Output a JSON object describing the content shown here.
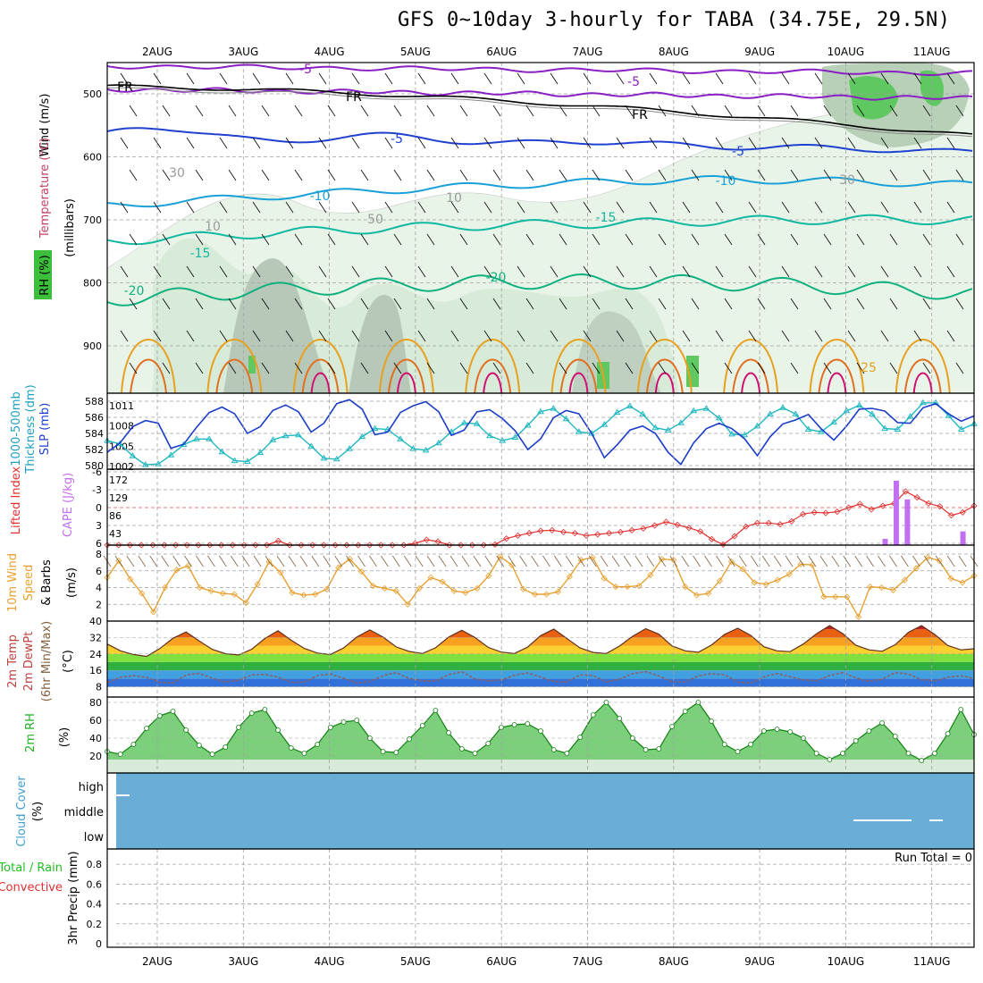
{
  "title": "GFS 0~10day 3-hourly for TABA (34.75E, 29.5N)",
  "colors": {
    "temp_purple": "#8a1fc4",
    "temp_blue": "#2040d0",
    "temp_cyan": "#1aa0d8",
    "temp_teal": "#10b8a0",
    "temp_green": "#10b080",
    "temp_orange": "#e8a020",
    "temp_magenta": "#d01070",
    "slp": "#1a3cc8",
    "thickness": "#20b8c0",
    "li": "#e03030",
    "cape": "#c070f0",
    "wind": "#e8a030",
    "rh": "#20c020",
    "cloud": "#6aaed8"
  },
  "chart_data": {
    "type": "meteogram",
    "x_dates": [
      "2AUG",
      "3AUG",
      "4AUG",
      "5AUG",
      "6AUG",
      "7AUG",
      "8AUG",
      "9AUG",
      "10AUG",
      "11AUG"
    ],
    "panels": [
      {
        "id": "upper",
        "ylabels": [
          "Wind (m/s)",
          "Temperature (°C)",
          "RH (%)",
          "(millibars)"
        ],
        "yticks": [
          500,
          600,
          700,
          800,
          900
        ],
        "contour_labels": [
          {
            "text": "FR"
          },
          {
            "text": "FR"
          },
          {
            "text": "FR"
          },
          {
            "text": "-5"
          },
          {
            "text": "-5"
          },
          {
            "text": "-5"
          },
          {
            "text": "-5"
          },
          {
            "text": "-10"
          },
          {
            "text": "-10"
          },
          {
            "text": "-15"
          },
          {
            "text": "-15"
          },
          {
            "text": "-20"
          },
          {
            "text": "-20"
          },
          {
            "text": "25"
          },
          {
            "text": "30"
          },
          {
            "text": "10"
          },
          {
            "text": "50"
          },
          {
            "text": "10"
          },
          {
            "text": "30"
          }
        ]
      },
      {
        "id": "slp_thickness",
        "ylabels": [
          "1000-500mb",
          "Thickness (dm)",
          "SLP (mb)"
        ],
        "yticks_left": [
          588,
          586,
          584,
          582,
          580
        ],
        "yticks_right": [
          1011,
          1008,
          1005,
          1002
        ],
        "slp": [
          1004.1,
          1005.5,
          1007.9,
          1008.8,
          1008.4,
          1004.7,
          1005.3,
          1007.8,
          1010,
          1010.8,
          1009.8,
          1006.9,
          1007.9,
          1010.3,
          1011.1,
          1010.1,
          1007.1,
          1008.4,
          1011.3,
          1011.9,
          1010.5,
          1006.7,
          1007.1,
          1010,
          1011,
          1011.6,
          1010.1,
          1006.6,
          1007.4,
          1010.1,
          1010.4,
          1009.1,
          1007.3,
          1004.5,
          1006.1,
          1009.2,
          1010.3,
          1009.8,
          1006.9,
          1003.3,
          1005.2,
          1007.4,
          1008,
          1006.9,
          1004.1,
          1002.3,
          1005.5,
          1007.6,
          1008.4,
          1007.6,
          1006.1,
          1003.6,
          1006.4,
          1008.3,
          1008.9,
          1009.7,
          1007.6,
          1005.9,
          1008,
          1010.5,
          1010.6,
          1010.2,
          1008.5,
          1008.4,
          1010.7,
          1011.3,
          1009.8,
          1008.7,
          1009.5
        ],
        "thickness": [
          583.1,
          582.7,
          581.2,
          580.1,
          580.2,
          581.3,
          582.6,
          583.3,
          583.3,
          581.7,
          580.6,
          580.5,
          581.6,
          583.2,
          583.7,
          583.8,
          582.4,
          580.9,
          580.8,
          582.1,
          583.6,
          584.6,
          584.5,
          583.3,
          582.1,
          581.9,
          582.8,
          584.2,
          585.3,
          585.2,
          583.7,
          583.1,
          583.5,
          585,
          586.7,
          587.1,
          585.8,
          584.2,
          584,
          585.1,
          586.6,
          587.4,
          586.4,
          584.7,
          584.4,
          585.3,
          586.8,
          587.1,
          585.9,
          583.9,
          583.8,
          584.9,
          586.4,
          587.2,
          586.4,
          584.5,
          584.2,
          585.4,
          586.8,
          587.5,
          586.4,
          584.6,
          584.5,
          586.1,
          587.8,
          587.8,
          586.2,
          584.5,
          585.2
        ]
      },
      {
        "id": "li_cape",
        "ylabels": [
          "Lifted Index",
          "CAPE (J/kg)"
        ],
        "yticks_left": [
          "-6",
          "-3",
          "0",
          "3",
          "6"
        ],
        "yticks_right": [
          "172",
          "129",
          "86",
          "43"
        ],
        "lifted_index": [
          6.8,
          7,
          7.3,
          7.4,
          6.9,
          6.6,
          7.2,
          7.4,
          7.1,
          6.3,
          6.7,
          7.1,
          7.4,
          7.2,
          6.4,
          5.6,
          6.4,
          7.4,
          7.4,
          7.2,
          7,
          6.9,
          6.7,
          7.2,
          7.3,
          7.1,
          6.8,
          6,
          5.4,
          5.7,
          6.3,
          6.8,
          6.9,
          6.8,
          6.2,
          5.2,
          4.7,
          4.3,
          3.9,
          3.8,
          4.1,
          4.3,
          4.7,
          4.5,
          4.3,
          4.1,
          3.8,
          3.5,
          3,
          2.4,
          2.9,
          3.4,
          4,
          5.3,
          6.2,
          4.8,
          3.2,
          2.6,
          2.6,
          2.8,
          2.3,
          1.1,
          0.8,
          0.9,
          0.7,
          0,
          -0.6,
          0.3,
          -0.3,
          -0.7,
          -2.7,
          -1.7,
          -0.7,
          -0.2,
          1.3,
          0.8,
          -0.3
        ],
        "cape": [
          0,
          0,
          0,
          0,
          0,
          0,
          0,
          0,
          0,
          0,
          0,
          0,
          0,
          0,
          0,
          0,
          0,
          0,
          0,
          0,
          0,
          0,
          0,
          0,
          0,
          0,
          0,
          0,
          0,
          0,
          0,
          0,
          0,
          0,
          0,
          0,
          0,
          0,
          0,
          0,
          0,
          0,
          0,
          0,
          0,
          0,
          0,
          0,
          0,
          0,
          0,
          0,
          0,
          0,
          0,
          0,
          0,
          0,
          0,
          0,
          0,
          0,
          0,
          0,
          0,
          0,
          0,
          0,
          0,
          0,
          15,
          155,
          110,
          0,
          0,
          0,
          0,
          33,
          0
        ]
      },
      {
        "id": "wind10m",
        "ylabels": [
          "10m Wind",
          "Speed",
          "& Barbs",
          "(m/s)"
        ],
        "yticks": [
          8,
          6,
          4,
          2
        ],
        "speed": [
          5.2,
          7.2,
          5,
          3.3,
          1.1,
          4,
          6.1,
          6.6,
          4,
          3.6,
          3.3,
          3.2,
          2.2,
          4.4,
          7.1,
          5.8,
          3.4,
          3.1,
          3.2,
          3.8,
          6.4,
          7.4,
          5.9,
          4.2,
          3.9,
          3.6,
          2,
          3.9,
          5.2,
          4.7,
          3.6,
          3.4,
          3.9,
          5.4,
          7.7,
          6.7,
          3.8,
          3.2,
          3.2,
          3.5,
          5.3,
          7.3,
          7.6,
          5.1,
          4.1,
          4.1,
          4.2,
          5.5,
          7.4,
          7.3,
          4.1,
          3.1,
          3.3,
          4.8,
          7.1,
          6.2,
          4.6,
          4.4,
          4.9,
          5.6,
          6.8,
          6.7,
          2.9,
          2.9,
          2.9,
          0.5,
          4.1,
          4,
          3.7,
          4.9,
          6.3,
          7.6,
          7.2,
          5.1,
          4.6,
          5.4
        ]
      },
      {
        "id": "temp2m",
        "ylabels": [
          "2m Temp",
          "2m DewPt",
          "(6hr Min/Max)",
          "(°C)"
        ],
        "yticks": [
          40,
          32,
          24,
          16,
          8
        ],
        "temp": [
          28.8,
          25.5,
          23.7,
          22.8,
          26.6,
          31.6,
          34.7,
          30.3,
          26.2,
          24.1,
          23.5,
          26.3,
          31.5,
          35.3,
          30.7,
          26.7,
          24.4,
          23.7,
          26.9,
          32.2,
          35.7,
          32.2,
          27.4,
          25.2,
          24.2,
          27,
          32.2,
          35.5,
          32,
          27.2,
          24.9,
          24.2,
          27.3,
          32.9,
          36.1,
          31.5,
          26.9,
          24.7,
          24.2,
          27.8,
          32.6,
          36.3,
          33.6,
          27.9,
          25.5,
          24.8,
          28.3,
          33.5,
          36.5,
          33,
          27.5,
          25.5,
          25.1,
          28.8,
          33.8,
          37.8,
          33.9,
          28.2,
          26,
          25.3,
          28.5,
          34.5,
          37.8,
          33.5,
          28.1,
          26,
          26.5
        ],
        "dewpt": [
          10,
          12.6,
          13.4,
          12.6,
          10.2,
          9.9,
          13.7,
          14.5,
          12.2,
          10.3,
          11.2,
          13.8,
          14,
          12.7,
          10.2,
          10.2,
          13.4,
          14.2,
          12.2,
          9.7,
          10.6,
          13.4,
          14.9,
          12,
          10.9,
          10.8,
          13.9,
          15.3,
          11.9,
          10.9,
          11.2,
          13.6,
          14.7,
          12.8,
          10.5,
          10.3,
          13.8,
          13.5,
          10.3,
          11.7,
          14.4,
          15.3,
          13.3,
          10.4,
          10.4,
          13.3,
          14.3,
          13.9,
          10.3,
          9.7,
          12.9,
          14.4,
          12.9,
          11.3,
          10.9,
          13.5,
          14.9,
          12.3,
          10.6,
          11.7,
          14.9,
          14.2,
          11.5,
          10.8,
          12.7,
          13.3,
          12.1
        ]
      },
      {
        "id": "rh2m",
        "ylabels": [
          "2m RH",
          "(%)"
        ],
        "yticks": [
          80,
          60,
          40,
          20
        ],
        "rh": [
          25,
          22,
          33,
          51,
          65,
          70,
          49,
          32,
          22,
          30,
          52,
          68,
          72,
          49,
          29,
          23,
          33,
          52,
          58,
          60,
          40,
          25,
          24,
          39,
          54,
          71,
          46,
          28,
          23,
          34,
          52,
          55,
          56,
          48,
          27,
          23,
          41,
          66,
          80,
          62,
          40,
          27,
          28,
          53,
          70,
          80,
          59,
          33,
          25,
          33,
          48,
          50,
          47,
          40,
          23,
          16,
          23,
          37,
          48,
          57,
          42,
          23,
          15,
          23,
          45,
          72,
          44
        ]
      },
      {
        "id": "cloud",
        "ylabels": [
          "Cloud Cover",
          "(%)"
        ],
        "yticks": [
          "high",
          "middle",
          "low"
        ]
      },
      {
        "id": "precip",
        "ylabels": [
          "Total / Rain",
          "Convective",
          "3hr Precip (mm)"
        ],
        "yticks": [
          "0.8",
          "0.6",
          "0.4",
          "0.2",
          "0"
        ],
        "run_total_label": "Run Total = 0"
      }
    ]
  }
}
